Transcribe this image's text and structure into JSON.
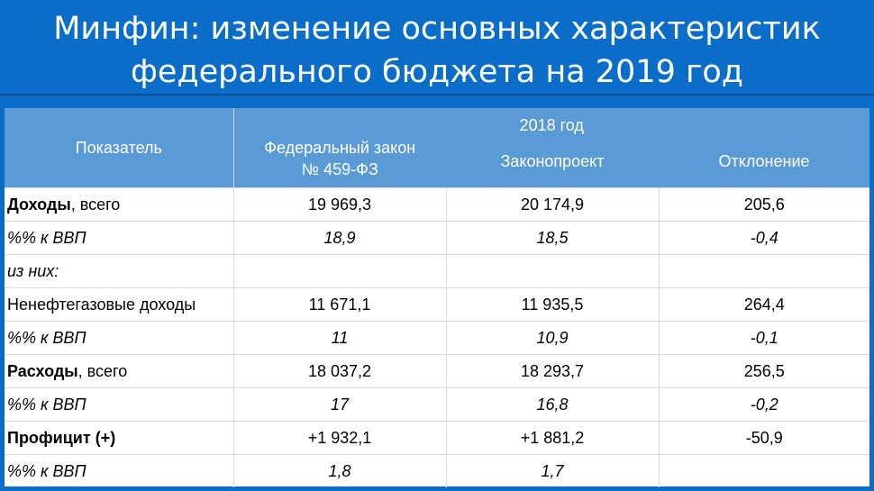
{
  "slide": {
    "title_line1": "Минфин: изменение основных характеристик",
    "title_line2": "федерального бюджета на 2019 год"
  },
  "table": {
    "header": {
      "indicator": "Показатель",
      "period": "2018 год",
      "law_line1": "Федеральный закон",
      "law_line2": "№ 459-ФЗ",
      "draft": "Законопроект",
      "deviation": "Отклонение"
    },
    "rows": [
      {
        "label_bold": "Доходы",
        "label_rest": ", всего",
        "law": "19 969,3",
        "draft": "20 174,9",
        "deviation": "205,6"
      },
      {
        "label": "%% к ВВП",
        "law": "18,9",
        "draft": "18,5",
        "deviation": "-0,4"
      },
      {
        "label": "из них:",
        "law": "",
        "draft": "",
        "deviation": ""
      },
      {
        "label": "Ненефтегазовые доходы",
        "law": "11 671,1",
        "draft": "11 935,5",
        "deviation": "264,4"
      },
      {
        "label": "%% к ВВП",
        "law": "11",
        "draft": "10,9",
        "deviation": "-0,1"
      },
      {
        "label_bold": "Расходы",
        "label_rest": ", всего",
        "law": "18 037,2",
        "draft": "18 293,7",
        "deviation": "256,5"
      },
      {
        "label": "%% к ВВП",
        "law": "17",
        "draft": "16,8",
        "deviation": "-0,2"
      },
      {
        "label_bold": "Профицит (+)",
        "label_rest": "",
        "law": "+1 932,1",
        "draft": "+1 881,2",
        "deviation": "-50,9"
      },
      {
        "label": "%% к ВВП",
        "law": "1,8",
        "draft": "1,7",
        "deviation": ""
      }
    ]
  }
}
